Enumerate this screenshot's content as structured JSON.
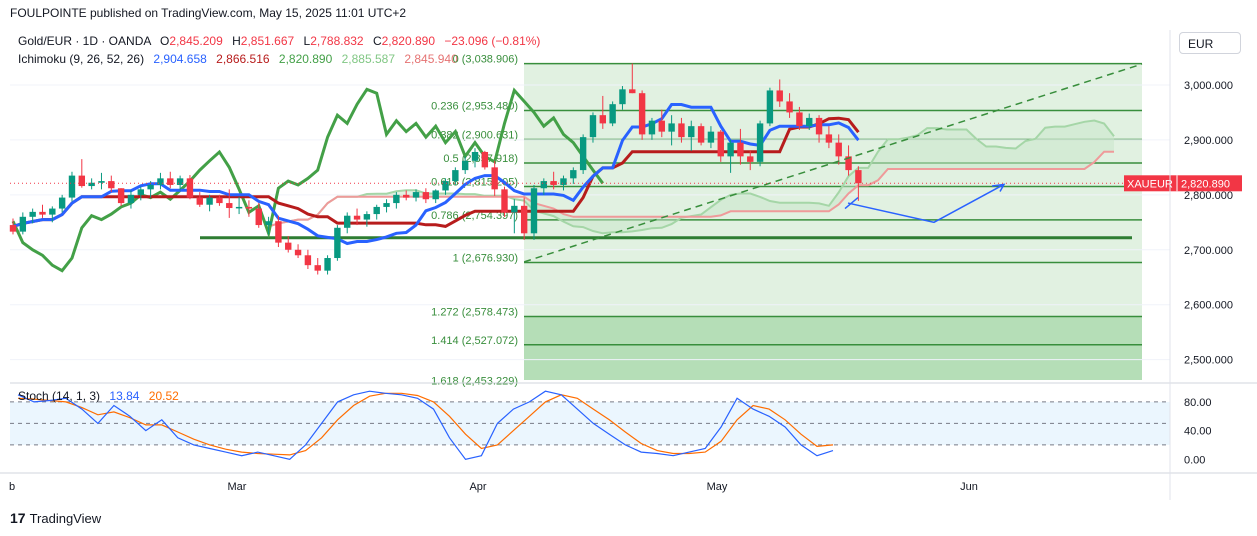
{
  "header": {
    "publisher": "FOULPOINTE published on TradingView.com, May 15, 2025 11:01 UTC+2"
  },
  "symbol": {
    "name": "Gold/EUR · 1D · OANDA",
    "open_label": "O",
    "open": "2,845.209",
    "high_label": "H",
    "high": "2,851.667",
    "low_label": "L",
    "low": "2,788.832",
    "close_label": "C",
    "close": "2,820.890",
    "change": "−23.096 (−0.81%)"
  },
  "ichimoku": {
    "label": "Ichimoku (9, 26, 52, 26)",
    "tenkan": "2,904.658",
    "kijun": "2,866.516",
    "chikou": "2,820.890",
    "span_a": "2,885.587",
    "span_b": "2,845.940"
  },
  "stoch": {
    "label": "Stoch (14, 1, 3)",
    "k": "13.84",
    "d": "20.52"
  },
  "currency": "EUR",
  "price_tag": {
    "symbol": "XAUEUR",
    "value": "2,820.890"
  },
  "brand": {
    "name": "TradingView",
    "logo": "17"
  },
  "colors": {
    "up": "#089981",
    "down": "#f23645",
    "tenkan": "#2962ff",
    "kijun": "#b71c1c",
    "chikou": "#43a047",
    "span_a": "#a5d6a7",
    "span_b": "#ef9a9a",
    "fib_line": "#388e3c",
    "fib_fill": "#c8e6c9",
    "stoch_k": "#2962ff",
    "stoch_d": "#ff6d00"
  },
  "chart_data": {
    "type": "candlestick",
    "price_axis": {
      "ticks": [
        "3,000.000",
        "2,900.000",
        "2,800.000",
        "2,700.000",
        "2,600.000",
        "2,500.000"
      ],
      "values": [
        3000,
        2900,
        2800,
        2700,
        2600,
        2500
      ],
      "range": [
        2463,
        3100
      ]
    },
    "time_axis": {
      "labels": [
        "b",
        "Mar",
        "Apr",
        "May",
        "Jun"
      ]
    },
    "fibonacci": [
      {
        "level": "0",
        "value": "3,038.906",
        "price": 3038.906
      },
      {
        "level": "0.236",
        "value": "2,953.480",
        "price": 2953.48
      },
      {
        "level": "0.382",
        "value": "2,900.631",
        "price": 2900.631
      },
      {
        "level": "0.5",
        "value": "2,857.918",
        "price": 2857.918
      },
      {
        "level": "0.618",
        "value": "2,815.205",
        "price": 2815.205
      },
      {
        "level": "0.786",
        "value": "2,754.397",
        "price": 2754.397
      },
      {
        "level": "1",
        "value": "2,676.930",
        "price": 2676.93
      },
      {
        "level": "1.272",
        "value": "2,578.473",
        "price": 2578.473
      },
      {
        "level": "1.414",
        "value": "2,527.072",
        "price": 2527.072
      },
      {
        "level": "1.618",
        "value": "2,453.229",
        "price": 2453.229
      }
    ],
    "support_line": 2722,
    "ohlc": [
      [
        2745,
        2757,
        2728,
        2733
      ],
      [
        2733,
        2768,
        2728,
        2760
      ],
      [
        2760,
        2775,
        2748,
        2769
      ],
      [
        2769,
        2782,
        2758,
        2764
      ],
      [
        2764,
        2779,
        2750,
        2775
      ],
      [
        2775,
        2800,
        2768,
        2795
      ],
      [
        2795,
        2842,
        2788,
        2835
      ],
      [
        2835,
        2865,
        2813,
        2816
      ],
      [
        2816,
        2830,
        2810,
        2822
      ],
      [
        2822,
        2840,
        2810,
        2825
      ],
      [
        2825,
        2835,
        2805,
        2812
      ],
      [
        2812,
        2812,
        2780,
        2785
      ],
      [
        2785,
        2808,
        2775,
        2800
      ],
      [
        2800,
        2815,
        2790,
        2810
      ],
      [
        2810,
        2825,
        2795,
        2818
      ],
      [
        2818,
        2840,
        2810,
        2830
      ],
      [
        2830,
        2842,
        2812,
        2818
      ],
      [
        2818,
        2835,
        2808,
        2830
      ],
      [
        2830,
        2836,
        2792,
        2795
      ],
      [
        2795,
        2805,
        2778,
        2782
      ],
      [
        2782,
        2800,
        2770,
        2795
      ],
      [
        2795,
        2800,
        2780,
        2785
      ],
      [
        2785,
        2810,
        2758,
        2776
      ],
      [
        2776,
        2796,
        2765,
        2778
      ],
      [
        2778,
        2790,
        2760,
        2775
      ],
      [
        2775,
        2785,
        2740,
        2745
      ],
      [
        2745,
        2760,
        2728,
        2752
      ],
      [
        2752,
        2762,
        2705,
        2713
      ],
      [
        2713,
        2725,
        2695,
        2700
      ],
      [
        2700,
        2710,
        2685,
        2690
      ],
      [
        2690,
        2700,
        2665,
        2672
      ],
      [
        2672,
        2685,
        2655,
        2662
      ],
      [
        2662,
        2690,
        2655,
        2685
      ],
      [
        2685,
        2745,
        2680,
        2740
      ],
      [
        2740,
        2768,
        2730,
        2762
      ],
      [
        2762,
        2775,
        2745,
        2755
      ],
      [
        2755,
        2770,
        2742,
        2765
      ],
      [
        2765,
        2782,
        2755,
        2778
      ],
      [
        2778,
        2792,
        2768,
        2785
      ],
      [
        2785,
        2805,
        2775,
        2800
      ],
      [
        2800,
        2808,
        2790,
        2795
      ],
      [
        2795,
        2810,
        2788,
        2805
      ],
      [
        2805,
        2812,
        2785,
        2792
      ],
      [
        2792,
        2810,
        2785,
        2808
      ],
      [
        2808,
        2830,
        2800,
        2825
      ],
      [
        2825,
        2850,
        2818,
        2845
      ],
      [
        2845,
        2870,
        2838,
        2862
      ],
      [
        2862,
        2885,
        2850,
        2878
      ],
      [
        2878,
        2880,
        2846,
        2850
      ],
      [
        2850,
        2862,
        2798,
        2810
      ],
      [
        2810,
        2815,
        2760,
        2768
      ],
      [
        2768,
        2792,
        2730,
        2780
      ],
      [
        2780,
        2795,
        2718,
        2730
      ],
      [
        2730,
        2818,
        2718,
        2812
      ],
      [
        2812,
        2830,
        2800,
        2825
      ],
      [
        2825,
        2842,
        2810,
        2818
      ],
      [
        2818,
        2835,
        2808,
        2830
      ],
      [
        2830,
        2850,
        2820,
        2845
      ],
      [
        2845,
        2910,
        2838,
        2905
      ],
      [
        2905,
        2950,
        2895,
        2945
      ],
      [
        2945,
        2980,
        2920,
        2930
      ],
      [
        2930,
        2970,
        2925,
        2965
      ],
      [
        2965,
        2998,
        2955,
        2992
      ],
      [
        2992,
        3039,
        2985,
        2985
      ],
      [
        2985,
        2990,
        2900,
        2910
      ],
      [
        2910,
        2940,
        2900,
        2935
      ],
      [
        2935,
        2955,
        2905,
        2915
      ],
      [
        2915,
        2945,
        2890,
        2930
      ],
      [
        2930,
        2940,
        2895,
        2905
      ],
      [
        2905,
        2935,
        2880,
        2925
      ],
      [
        2925,
        2930,
        2890,
        2895
      ],
      [
        2895,
        2925,
        2885,
        2915
      ],
      [
        2915,
        2918,
        2860,
        2870
      ],
      [
        2870,
        2900,
        2840,
        2895
      ],
      [
        2895,
        2920,
        2855,
        2870
      ],
      [
        2870,
        2880,
        2845,
        2860
      ],
      [
        2860,
        2935,
        2852,
        2930
      ],
      [
        2930,
        2995,
        2925,
        2990
      ],
      [
        2990,
        3010,
        2960,
        2970
      ],
      [
        2970,
        2985,
        2940,
        2950
      ],
      [
        2950,
        2960,
        2918,
        2925
      ],
      [
        2925,
        2948,
        2918,
        2940
      ],
      [
        2940,
        2945,
        2895,
        2910
      ],
      [
        2910,
        2925,
        2885,
        2895
      ],
      [
        2895,
        2910,
        2855,
        2870
      ],
      [
        2870,
        2890,
        2835,
        2845
      ],
      [
        2845,
        2852,
        2789,
        2821
      ]
    ],
    "stochastic": {
      "ticks": [
        "80.00",
        "40.00",
        "0.00"
      ],
      "tick_values": [
        80,
        40,
        0
      ],
      "bands": [
        80,
        20
      ],
      "range": [
        -15,
        105
      ],
      "k": [
        90,
        80,
        82,
        85,
        70,
        50,
        75,
        60,
        40,
        55,
        30,
        20,
        15,
        10,
        5,
        10,
        5,
        0,
        20,
        50,
        80,
        90,
        95,
        92,
        90,
        85,
        70,
        30,
        0,
        5,
        50,
        70,
        80,
        95,
        90,
        70,
        50,
        35,
        20,
        10,
        8,
        5,
        10,
        15,
        45,
        85,
        70,
        60,
        45,
        20,
        5,
        12
      ],
      "d": [
        85,
        84,
        82,
        80,
        72,
        62,
        66,
        58,
        48,
        48,
        38,
        28,
        20,
        14,
        10,
        8,
        7,
        6,
        12,
        30,
        55,
        75,
        88,
        92,
        92,
        89,
        80,
        60,
        35,
        15,
        20,
        40,
        60,
        80,
        90,
        85,
        70,
        55,
        38,
        22,
        12,
        8,
        8,
        10,
        25,
        55,
        75,
        70,
        55,
        35,
        18,
        20
      ]
    }
  }
}
